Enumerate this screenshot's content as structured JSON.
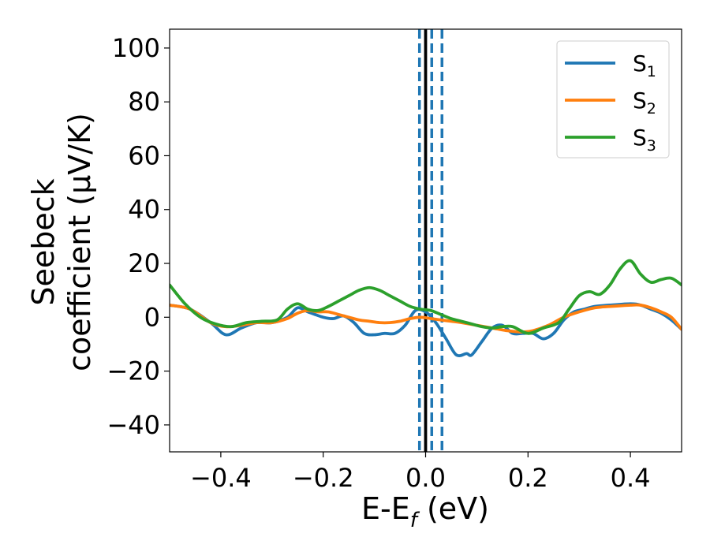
{
  "chart_data": {
    "type": "line",
    "xlabel_main": "E-E",
    "xlabel_sub": "f",
    "xlabel_unit": " (eV)",
    "ylabel_line1": "Seebeck",
    "ylabel_line2": "coefficient  (μV/K)",
    "xlim": [
      -0.5,
      0.5
    ],
    "ylim": [
      -50,
      107
    ],
    "xticks": [
      -0.4,
      -0.2,
      0.0,
      0.2,
      0.4
    ],
    "xtick_labels": [
      "−0.4",
      "−0.2",
      "0.0",
      "0.2",
      "0.4"
    ],
    "yticks": [
      -40,
      -20,
      0,
      20,
      40,
      60,
      80,
      100
    ],
    "ytick_labels": [
      "−40",
      "−20",
      "0",
      "20",
      "40",
      "60",
      "80",
      "100"
    ],
    "legend_position": "top-right",
    "vlines": [
      {
        "x": -0.012,
        "style": "dashed",
        "color": "#1f77b4"
      },
      {
        "x": 0.012,
        "style": "dashed",
        "color": "#1f77b4"
      },
      {
        "x": 0.032,
        "style": "dashed",
        "color": "#1f77b4"
      },
      {
        "x": 0.0,
        "style": "solid",
        "color": "#000000"
      }
    ],
    "series": [
      {
        "name_main": "S",
        "name_sub": "1",
        "color": "#1f77b4",
        "x": [
          -0.5,
          -0.46,
          -0.42,
          -0.39,
          -0.36,
          -0.33,
          -0.3,
          -0.27,
          -0.25,
          -0.23,
          -0.2,
          -0.18,
          -0.16,
          -0.14,
          -0.12,
          -0.1,
          -0.08,
          -0.06,
          -0.04,
          -0.02,
          0.0,
          0.02,
          0.04,
          0.06,
          0.08,
          0.09,
          0.11,
          0.13,
          0.15,
          0.17,
          0.19,
          0.21,
          0.23,
          0.25,
          0.27,
          0.29,
          0.31,
          0.33,
          0.36,
          0.4,
          0.42,
          0.44,
          0.46,
          0.48,
          0.5
        ],
        "y": [
          4.5,
          3,
          -2,
          -6.5,
          -4,
          -2,
          -2,
          0,
          3.5,
          2,
          0,
          -0.5,
          0.5,
          -2,
          -6,
          -6.5,
          -6,
          -6,
          -3,
          2.5,
          2,
          -2,
          -8,
          -14,
          -13.5,
          -14,
          -9,
          -4,
          -3,
          -6,
          -6,
          -6,
          -8,
          -6,
          -1,
          2,
          3,
          4,
          4.5,
          5,
          4.5,
          3,
          1.5,
          -1,
          -4.5
        ]
      },
      {
        "name_main": "S",
        "name_sub": "2",
        "color": "#ff7f0e",
        "x": [
          -0.5,
          -0.46,
          -0.42,
          -0.39,
          -0.36,
          -0.33,
          -0.3,
          -0.27,
          -0.25,
          -0.23,
          -0.21,
          -0.19,
          -0.17,
          -0.15,
          -0.13,
          -0.11,
          -0.09,
          -0.07,
          -0.05,
          -0.03,
          -0.01,
          0.01,
          0.03,
          0.05,
          0.07,
          0.1,
          0.13,
          0.16,
          0.19,
          0.21,
          0.24,
          0.27,
          0.3,
          0.33,
          0.36,
          0.4,
          0.42,
          0.44,
          0.46,
          0.48,
          0.5
        ],
        "y": [
          4.5,
          3,
          -2,
          -3.5,
          -3,
          -2,
          -2,
          -0.5,
          1.5,
          2.5,
          2,
          2,
          1,
          0,
          -1,
          -1.5,
          -2,
          -2,
          -1.5,
          -0.5,
          0,
          -0.5,
          -1,
          -1.5,
          -2,
          -3,
          -4,
          -5,
          -5.5,
          -5,
          -3,
          0,
          2,
          3.5,
          4,
          4.5,
          4.5,
          3.5,
          2,
          0,
          -4.5
        ]
      },
      {
        "name_main": "S",
        "name_sub": "3",
        "color": "#2ca02c",
        "x": [
          -0.5,
          -0.47,
          -0.44,
          -0.41,
          -0.38,
          -0.35,
          -0.32,
          -0.29,
          -0.27,
          -0.25,
          -0.23,
          -0.21,
          -0.19,
          -0.17,
          -0.15,
          -0.13,
          -0.11,
          -0.09,
          -0.07,
          -0.05,
          -0.03,
          -0.01,
          0.01,
          0.03,
          0.05,
          0.07,
          0.09,
          0.11,
          0.13,
          0.15,
          0.17,
          0.2,
          0.23,
          0.26,
          0.28,
          0.3,
          0.32,
          0.34,
          0.36,
          0.38,
          0.4,
          0.42,
          0.44,
          0.46,
          0.48,
          0.5
        ],
        "y": [
          12,
          5,
          0,
          -2.5,
          -3.5,
          -2,
          -1.5,
          -1,
          3,
          5,
          3,
          2.5,
          4,
          6,
          8,
          10,
          11,
          10,
          8,
          6,
          4,
          3,
          2.5,
          1,
          -0.5,
          -1.5,
          -2.5,
          -3.5,
          -4,
          -3.5,
          -3.5,
          -6,
          -4,
          -2,
          3,
          8,
          9.5,
          8.5,
          12,
          18,
          21,
          16,
          13,
          14,
          14.5,
          12
        ]
      }
    ]
  }
}
